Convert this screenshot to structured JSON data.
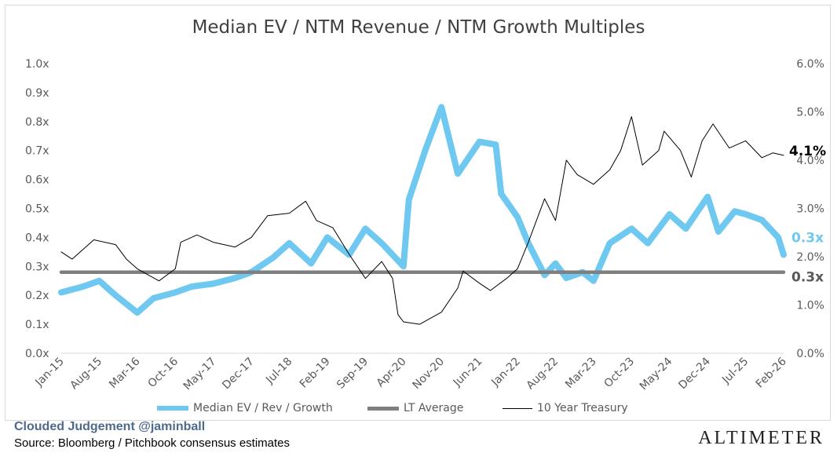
{
  "chart_data": {
    "type": "line",
    "title": "Median EV / NTM Revenue / NTM Growth Multiples",
    "x_tick_labels": [
      "Jan-15",
      "Aug-15",
      "Mar-16",
      "Oct-16",
      "May-17",
      "Dec-17",
      "Jul-18",
      "Feb-19",
      "Sep-19",
      "Apr-20",
      "Nov-20",
      "Jun-21",
      "Jan-22",
      "Aug-22",
      "Mar-23",
      "Oct-23",
      "May-24",
      "Dec-24",
      "Jul-25",
      "Feb-26"
    ],
    "y_left": {
      "ylim": [
        0,
        1.0
      ],
      "ticks": [
        "0.0x",
        "0.1x",
        "0.2x",
        "0.3x",
        "0.4x",
        "0.5x",
        "0.6x",
        "0.7x",
        "0.8x",
        "0.9x",
        "1.0x"
      ]
    },
    "y_right": {
      "ylim": [
        0,
        6.0
      ],
      "ticks": [
        "0.0%",
        "1.0%",
        "2.0%",
        "3.0%",
        "4.0%",
        "5.0%",
        "6.0%"
      ]
    },
    "series": [
      {
        "name": "Median EV / Rev / Growth",
        "axis": "left",
        "color": "#6fc8f0",
        "x": [
          "Jan-15",
          "May-15",
          "Aug-15",
          "Nov-15",
          "Mar-16",
          "Jun-16",
          "Oct-16",
          "Jan-17",
          "May-17",
          "Sep-17",
          "Dec-17",
          "Apr-18",
          "Jul-18",
          "Nov-18",
          "Feb-19",
          "Jun-19",
          "Sep-19",
          "Dec-19",
          "Apr-20",
          "May-20",
          "Aug-20",
          "Nov-20",
          "Feb-21",
          "Jun-21",
          "Sep-21",
          "Oct-21",
          "Jan-22",
          "Mar-22",
          "Jun-22",
          "Aug-22",
          "Oct-22",
          "Jan-23",
          "Mar-23",
          "Jun-23",
          "Oct-23",
          "Jan-24",
          "May-24",
          "Aug-24",
          "Dec-24",
          "Feb-25",
          "May-25",
          "Jul-25",
          "Oct-25",
          "Jan-26",
          "Feb-26"
        ],
        "values": [
          0.21,
          0.23,
          0.25,
          0.2,
          0.14,
          0.19,
          0.21,
          0.23,
          0.24,
          0.26,
          0.28,
          0.33,
          0.38,
          0.31,
          0.4,
          0.34,
          0.43,
          0.38,
          0.3,
          0.53,
          0.7,
          0.85,
          0.62,
          0.73,
          0.72,
          0.55,
          0.47,
          0.38,
          0.27,
          0.31,
          0.26,
          0.28,
          0.25,
          0.38,
          0.43,
          0.38,
          0.48,
          0.43,
          0.54,
          0.42,
          0.49,
          0.48,
          0.46,
          0.4,
          0.34
        ]
      },
      {
        "name": "LT Average",
        "axis": "left",
        "color": "#7f7f7f",
        "x": [
          "Jan-15",
          "Feb-26"
        ],
        "values": [
          0.28,
          0.28
        ]
      },
      {
        "name": "10 Year Treasury",
        "axis": "right",
        "color": "#000000",
        "x": [
          "Jan-15",
          "Mar-15",
          "Jul-15",
          "Nov-15",
          "Jan-16",
          "Mar-16",
          "Jul-16",
          "Oct-16",
          "Nov-16",
          "Feb-17",
          "May-17",
          "Sep-17",
          "Dec-17",
          "Mar-18",
          "Jul-18",
          "Oct-18",
          "Dec-18",
          "Mar-19",
          "Jun-19",
          "Sep-19",
          "Dec-19",
          "Feb-20",
          "Mar-20",
          "Apr-20",
          "Jul-20",
          "Nov-20",
          "Feb-21",
          "Mar-21",
          "Jun-21",
          "Aug-21",
          "Nov-21",
          "Jan-22",
          "Mar-22",
          "May-22",
          "Jun-22",
          "Aug-22",
          "Oct-22",
          "Dec-22",
          "Mar-23",
          "Jun-23",
          "Aug-23",
          "Oct-23",
          "Dec-23",
          "Mar-24",
          "Apr-24",
          "Jul-24",
          "Sep-24",
          "Nov-24",
          "Jan-25",
          "Apr-25",
          "Jul-25",
          "Oct-25",
          "Dec-25",
          "Feb-26"
        ],
        "values": [
          2.1,
          1.95,
          2.35,
          2.25,
          1.95,
          1.75,
          1.5,
          1.75,
          2.3,
          2.45,
          2.3,
          2.2,
          2.4,
          2.85,
          2.9,
          3.15,
          2.75,
          2.6,
          2.05,
          1.55,
          1.9,
          1.55,
          0.8,
          0.65,
          0.6,
          0.85,
          1.35,
          1.7,
          1.45,
          1.3,
          1.55,
          1.75,
          2.3,
          2.9,
          3.2,
          2.75,
          4.0,
          3.7,
          3.5,
          3.8,
          4.2,
          4.9,
          3.9,
          4.2,
          4.6,
          4.2,
          3.65,
          4.4,
          4.75,
          4.25,
          4.4,
          4.05,
          4.15,
          4.1
        ]
      }
    ],
    "end_labels": {
      "treasury": "4.1%",
      "median": "0.3x",
      "average": "0.3x"
    },
    "legend_position": "bottom",
    "grid": false
  },
  "legend": {
    "median": "Median EV / Rev / Growth",
    "average": "LT Average",
    "treasury": "10 Year Treasury"
  },
  "footer": {
    "handle": "Clouded Judgement @jaminball",
    "source": "Source: Bloomberg / Pitchbook consensus estimates",
    "brand": "ALTIMETER"
  }
}
